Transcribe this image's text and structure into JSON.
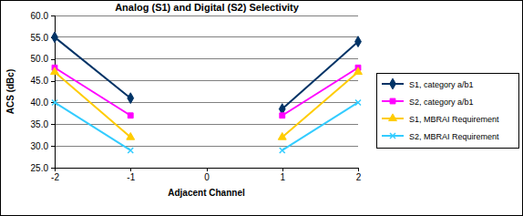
{
  "chart_data": {
    "type": "line",
    "title": "Analog (S1) and Digital (S2) Selectivity",
    "x_label": "Adjacent Channel",
    "y_label": "ACS (dBc)",
    "x": [
      -2,
      -1,
      0,
      1,
      2
    ],
    "xlim": [
      -2,
      2
    ],
    "xticks": [
      -2,
      -1,
      0,
      1,
      2
    ],
    "ylim": [
      25,
      60
    ],
    "yticks": [
      {
        "value": 25,
        "label": "25.0"
      },
      {
        "value": 30,
        "label": "30.0"
      },
      {
        "value": 35,
        "label": "35.0"
      },
      {
        "value": 40,
        "label": "40.0"
      },
      {
        "value": 45,
        "label": "45.0"
      },
      {
        "value": 50,
        "label": "50.0"
      },
      {
        "value": 55,
        "label": "55.0"
      },
      {
        "value": 60,
        "label": "60.0"
      }
    ],
    "grid": true,
    "legend": "right",
    "series": [
      {
        "name": "S1, category a/b1",
        "color": "#003366",
        "marker": "diamond",
        "line_style": "solid",
        "values": [
          55,
          41,
          null,
          38.5,
          54
        ]
      },
      {
        "name": "S2, category a/b1",
        "color": "#ff00ff",
        "marker": "square",
        "line_style": "solid",
        "values": [
          48,
          37,
          null,
          37,
          48
        ]
      },
      {
        "name": "S1, MBRAI Requirement",
        "color": "#ffcc00",
        "marker": "triangle",
        "line_style": "solid",
        "values": [
          47,
          32,
          null,
          32,
          47
        ]
      },
      {
        "name": "S2, MBRAI Requirement",
        "color": "#33ccff",
        "marker": "x",
        "line_style": "solid",
        "values": [
          40,
          29,
          null,
          29,
          40
        ]
      }
    ]
  }
}
